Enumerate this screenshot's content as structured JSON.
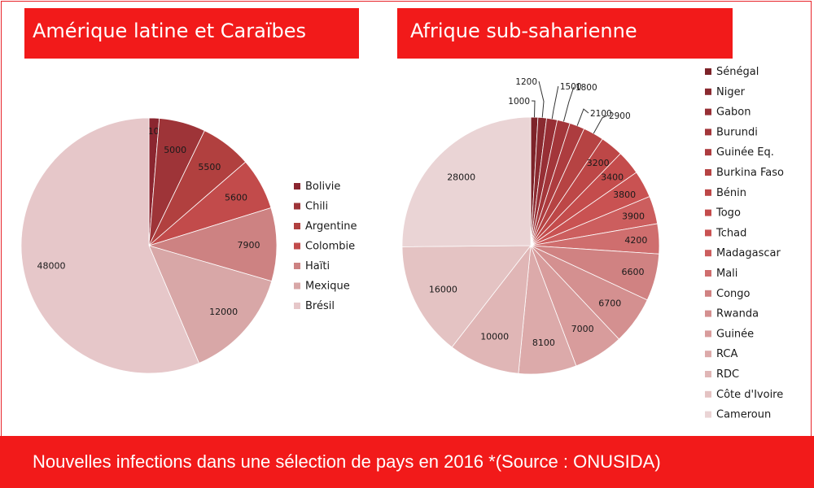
{
  "footer": {
    "caption": "Nouvelles infections dans une sélection de pays en 2016 *(Source : ONUSIDA)"
  },
  "chart_data": [
    {
      "type": "pie",
      "title": "Amérique latine et Caraïbes",
      "categories": [
        "Bolivie",
        "Chili",
        "Argentine",
        "Colombie",
        "Haïti",
        "Mexique",
        "Brésil"
      ],
      "values": [
        1100,
        5000,
        5500,
        5600,
        7900,
        12000,
        48000
      ],
      "colors": [
        "#8b2630",
        "#9e3438",
        "#b1403f",
        "#c24b4b",
        "#cd8282",
        "#d8a7a7",
        "#e6c7c9"
      ],
      "legend_position": "right"
    },
    {
      "type": "pie",
      "title": "Afrique sub-saharienne",
      "categories": [
        "Sénégal",
        "Niger",
        "Gabon",
        "Burundi",
        "Guinée Eq.",
        "Burkina Faso",
        "Bénin",
        "Togo",
        "Tchad",
        "Madagascar",
        "Mali",
        "Congo",
        "Rwanda",
        "Guinée",
        "RCA",
        "RDC",
        "Côte d'Ivoire",
        "Cameroun"
      ],
      "values": [
        1000,
        1200,
        1500,
        1800,
        2100,
        2900,
        3200,
        3400,
        3800,
        3900,
        4200,
        6600,
        6700,
        7000,
        8100,
        10000,
        16000,
        28000
      ],
      "colors": [
        "#7d2329",
        "#8a2a30",
        "#972f35",
        "#a3363a",
        "#ad3c3f",
        "#b64343",
        "#bd4747",
        "#c44c4c",
        "#c95252",
        "#cc5e5e",
        "#cf6e6e",
        "#d08282",
        "#d49090",
        "#d89c9c",
        "#dcaaaa",
        "#e0b6b6",
        "#e4c3c3",
        "#ead4d5"
      ],
      "legend_position": "right"
    }
  ]
}
